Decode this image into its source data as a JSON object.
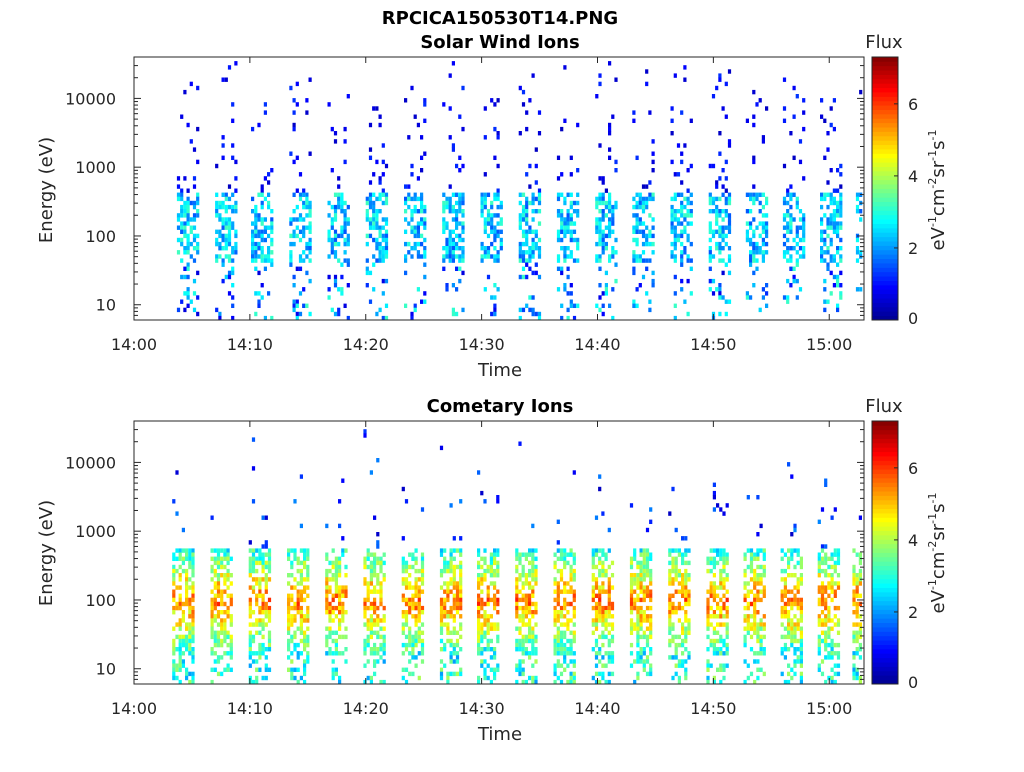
{
  "figure": {
    "title": "RPCICA150530T14.PNG"
  },
  "colormap": [
    "#00008f",
    "#0000ff",
    "#0080ff",
    "#00ffff",
    "#80ff80",
    "#ffff00",
    "#ff8000",
    "#ff0000",
    "#800000"
  ],
  "chart_data": [
    {
      "type": "heatmap",
      "title": "Solar Wind Ions",
      "xlabel": "Time",
      "ylabel": "Energy (eV)",
      "x_ticks": [
        "14:00",
        "14:10",
        "14:20",
        "14:30",
        "14:40",
        "14:50",
        "15:00"
      ],
      "x_range_minutes": [
        0,
        63
      ],
      "y_scale": "log",
      "y_ticks": [
        10,
        100,
        1000,
        10000
      ],
      "y_tick_labels": [
        "10",
        "100",
        "1000",
        "10000"
      ],
      "y_range_eV": [
        6,
        40000
      ],
      "colorbar": {
        "label": "Flux",
        "unit_base": "eV",
        "unit_text": "eV-1cm-2sr-1s-1",
        "range": [
          0,
          7.3
        ],
        "ticks": [
          "0",
          "2",
          "4",
          "6"
        ]
      },
      "sweeps_start_minutes": [
        3.7,
        7.0,
        10.1,
        13.4,
        16.7,
        20.0,
        23.3,
        26.6,
        29.9,
        33.2,
        36.5,
        39.8,
        43.0,
        46.3,
        49.6,
        52.8,
        56.0,
        59.2,
        62.3
      ],
      "main_band_eV": [
        40,
        400
      ],
      "main_band_flux": [
        1.5,
        3.2
      ]
    },
    {
      "type": "heatmap",
      "title": "Cometary Ions",
      "xlabel": "Time",
      "ylabel": "Energy (eV)",
      "x_ticks": [
        "14:00",
        "14:10",
        "14:20",
        "14:30",
        "14:40",
        "14:50",
        "15:00"
      ],
      "x_range_minutes": [
        0,
        63
      ],
      "y_scale": "log",
      "y_ticks": [
        10,
        100,
        1000,
        10000
      ],
      "y_tick_labels": [
        "10",
        "100",
        "1000",
        "10000"
      ],
      "y_range_eV": [
        6,
        40000
      ],
      "colorbar": {
        "label": "Flux",
        "unit_base": "eV",
        "unit_text": "eV-1cm-2sr-1s-1",
        "range": [
          0,
          7.3
        ],
        "ticks": [
          "0",
          "2",
          "4",
          "6"
        ]
      },
      "sweeps_start_minutes": [
        3.3,
        6.6,
        9.9,
        13.2,
        16.5,
        19.8,
        23.1,
        26.4,
        29.6,
        32.9,
        36.2,
        39.5,
        42.8,
        46.1,
        49.4,
        52.6,
        55.8,
        59.0,
        62.0
      ],
      "main_band_eV": [
        15,
        600
      ],
      "main_band_flux": [
        3.0,
        5.5
      ]
    }
  ]
}
